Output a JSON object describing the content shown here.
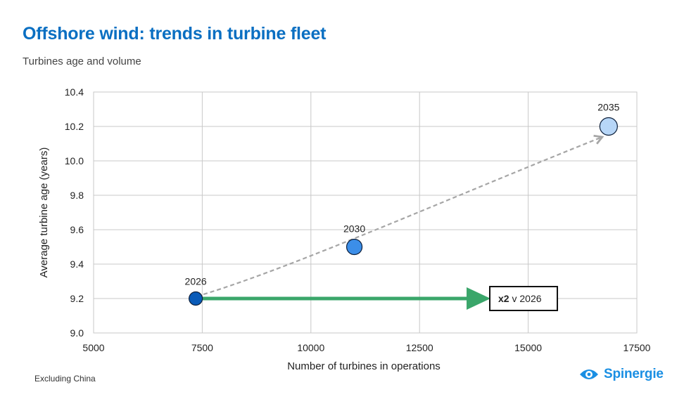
{
  "header": {
    "title": "Offshore wind: trends in turbine fleet",
    "subtitle": "Turbines age and volume"
  },
  "footer": {
    "note": "Excluding China",
    "brand": "Spinergie"
  },
  "colors": {
    "title": "#0a6fc2",
    "grid": "#c8c8c8",
    "arrow": "#3aa66a",
    "trend": "#a6a6a6",
    "brand": "#1a8fe3"
  },
  "chart_data": {
    "type": "scatter",
    "xlabel": "Number of turbines in operations",
    "ylabel": "Average turbine age (years)",
    "xlim": [
      5000,
      17500
    ],
    "ylim": [
      9.0,
      10.4
    ],
    "xticks": [
      "5000",
      "7500",
      "10000",
      "12500",
      "15000",
      "17500"
    ],
    "yticks": [
      "9.0",
      "9.2",
      "9.4",
      "9.6",
      "9.8",
      "10.0",
      "10.2",
      "10.4"
    ],
    "grid": true,
    "points": [
      {
        "label": "2026",
        "x": 7350,
        "y": 9.2,
        "color": "#0a5bb8"
      },
      {
        "label": "2030",
        "x": 11000,
        "y": 9.5,
        "color": "#3c8ee8"
      },
      {
        "label": "2035",
        "x": 16850,
        "y": 10.2,
        "color": "#b7d6f7"
      }
    ],
    "annotation": {
      "bold": "x2",
      "text": " v 2026",
      "arrow_from_x": 7350,
      "arrow_to_x": 14100,
      "y": 9.2
    }
  }
}
